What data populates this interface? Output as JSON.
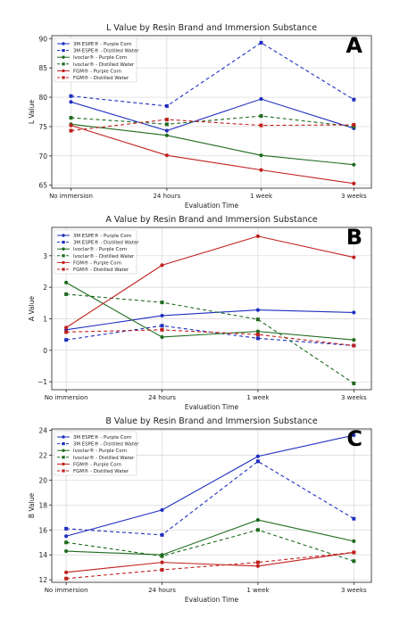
{
  "chart_data": [
    {
      "type": "line",
      "panel_letter": "A",
      "title": "L Value by Resin Brand and Immersion Substance",
      "xlabel": "Evaluation Time",
      "ylabel": "L Value",
      "categories": [
        "No immersion",
        "24 hours",
        "1 week",
        "3 weeks"
      ],
      "ylim": [
        64.5,
        90.5
      ],
      "yticks": [
        65,
        70,
        75,
        80,
        85,
        90
      ],
      "grid": true,
      "legend_position": "top-left",
      "series": [
        {
          "name": "3M ESPE® - Purple Corn",
          "color": "#1f2fbf",
          "dash": "solid",
          "marker": "circle",
          "values": [
            79.2,
            74.3,
            79.7,
            74.7
          ]
        },
        {
          "name": "3M ESPE® - Distilled Water",
          "color": "#1f2fbf",
          "dash": "dashed",
          "marker": "square",
          "values": [
            80.2,
            78.5,
            89.3,
            79.6
          ]
        },
        {
          "name": "Ivoclar® - Purple Corn",
          "color": "#1e6b1e",
          "dash": "solid",
          "marker": "circle",
          "values": [
            75.4,
            73.5,
            70.1,
            68.5
          ]
        },
        {
          "name": "Ivoclar® - Distilled Water",
          "color": "#1e6b1e",
          "dash": "dashed",
          "marker": "square",
          "values": [
            76.5,
            75.4,
            76.8,
            75.0
          ]
        },
        {
          "name": "FGM® - Purple Corn",
          "color": "#c0201d",
          "dash": "solid",
          "marker": "circle",
          "values": [
            75.2,
            70.1,
            67.6,
            65.3
          ]
        },
        {
          "name": "FGM® - Distilled Water",
          "color": "#c0201d",
          "dash": "dashed",
          "marker": "square",
          "values": [
            74.3,
            76.2,
            75.2,
            75.3
          ]
        }
      ]
    },
    {
      "type": "line",
      "panel_letter": "B",
      "title": "A Value by Resin Brand and Immersion Substance",
      "xlabel": "Evaluation Time",
      "ylabel": "A Value",
      "categories": [
        "No immersion",
        "24 hours",
        "1 week",
        "3 weeks"
      ],
      "ylim": [
        -1.25,
        3.9
      ],
      "yticks": [
        -1,
        0,
        1,
        2,
        3
      ],
      "grid": true,
      "legend_position": "top-left",
      "series": [
        {
          "name": "3M ESPE® - Purple Corn",
          "color": "#1f2fbf",
          "dash": "solid",
          "marker": "circle",
          "values": [
            0.65,
            1.1,
            1.28,
            1.2
          ]
        },
        {
          "name": "3M ESPE® - Distilled Water",
          "color": "#1f2fbf",
          "dash": "dashed",
          "marker": "square",
          "values": [
            0.33,
            0.78,
            0.38,
            0.15
          ]
        },
        {
          "name": "Ivoclar® - Purple Corn",
          "color": "#1e6b1e",
          "dash": "solid",
          "marker": "circle",
          "values": [
            2.15,
            0.42,
            0.6,
            0.33
          ]
        },
        {
          "name": "Ivoclar® - Distilled Water",
          "color": "#1e6b1e",
          "dash": "dashed",
          "marker": "square",
          "values": [
            1.78,
            1.52,
            0.98,
            -1.05
          ]
        },
        {
          "name": "FGM® - Purple Corn",
          "color": "#c0201d",
          "dash": "solid",
          "marker": "circle",
          "values": [
            0.72,
            2.7,
            3.62,
            2.95
          ]
        },
        {
          "name": "FGM® - Distilled Water",
          "color": "#c0201d",
          "dash": "dashed",
          "marker": "square",
          "values": [
            0.58,
            0.65,
            0.5,
            0.15
          ]
        }
      ]
    },
    {
      "type": "line",
      "panel_letter": "C",
      "title": "B Value by Resin Brand and Immersion Substance",
      "xlabel": "Evaluation Time",
      "ylabel": "B Value",
      "categories": [
        "No immersion",
        "24 hours",
        "1 week",
        "3 weeks"
      ],
      "ylim": [
        11.8,
        24.1
      ],
      "yticks": [
        12,
        14,
        16,
        18,
        20,
        22,
        24
      ],
      "grid": true,
      "legend_position": "top-left",
      "series": [
        {
          "name": "3M ESPE® - Purple Corn",
          "color": "#1f2fbf",
          "dash": "solid",
          "marker": "circle",
          "values": [
            15.5,
            17.6,
            21.9,
            23.6
          ]
        },
        {
          "name": "3M ESPE® - Distilled Water",
          "color": "#1f2fbf",
          "dash": "dashed",
          "marker": "square",
          "values": [
            16.1,
            15.6,
            21.5,
            16.9
          ]
        },
        {
          "name": "Ivoclar® - Purple Corn",
          "color": "#1e6b1e",
          "dash": "solid",
          "marker": "circle",
          "values": [
            14.3,
            14.0,
            16.8,
            15.1
          ]
        },
        {
          "name": "Ivoclar® - Distilled Water",
          "color": "#1e6b1e",
          "dash": "dashed",
          "marker": "square",
          "values": [
            15.0,
            13.9,
            16.0,
            13.5
          ]
        },
        {
          "name": "FGM® - Purple Corn",
          "color": "#c0201d",
          "dash": "solid",
          "marker": "circle",
          "values": [
            12.6,
            13.4,
            13.1,
            14.2
          ]
        },
        {
          "name": "FGM® - Distilled Water",
          "color": "#c0201d",
          "dash": "dashed",
          "marker": "square",
          "values": [
            12.1,
            12.8,
            13.4,
            14.2
          ]
        }
      ]
    }
  ]
}
